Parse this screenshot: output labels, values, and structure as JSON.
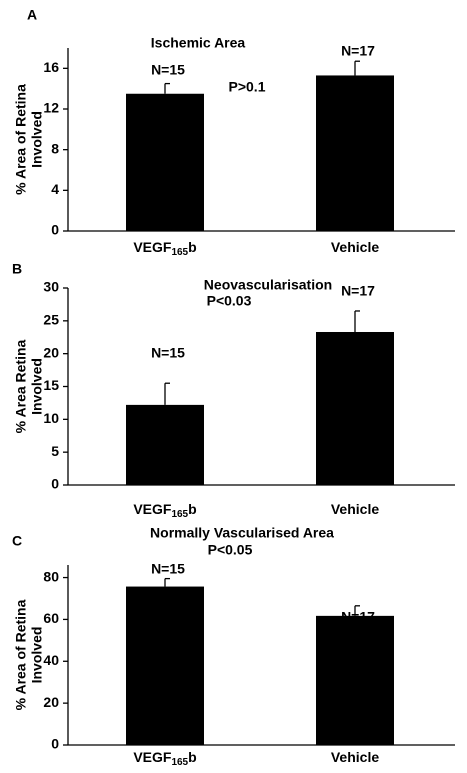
{
  "chart_data": [
    {
      "type": "bar",
      "panel": "A",
      "title": "Ischemic Area",
      "annotation": "P>0.1",
      "ylabel": [
        "% Area of Retina",
        "Involved"
      ],
      "categories": [
        "VEGF165b",
        "Vehicle"
      ],
      "n_labels": [
        "N=15",
        "N=17"
      ],
      "values": [
        13.5,
        15.3
      ],
      "errors": [
        1.0,
        1.4
      ],
      "color": "#000000",
      "ylim": [
        0,
        18
      ],
      "yticks": [
        0,
        4,
        8,
        12,
        16
      ]
    },
    {
      "type": "bar",
      "panel": "B",
      "title": "Neovascularisation",
      "annotation": "P<0.03",
      "ylabel": [
        "% Area Retina",
        "Involved"
      ],
      "categories": [
        "VEGF165b",
        "Vehicle"
      ],
      "n_labels": [
        "N=15",
        "N=17"
      ],
      "values": [
        12.2,
        23.3
      ],
      "errors": [
        3.3,
        3.2
      ],
      "color": "#000000",
      "ylim": [
        0,
        30
      ],
      "yticks": [
        0,
        5,
        10,
        15,
        20,
        25,
        30
      ]
    },
    {
      "type": "bar",
      "panel": "C",
      "title": "Normally Vascularised Area",
      "annotation": "P<0.05",
      "ylabel": [
        "% Area of Retina",
        "Involved"
      ],
      "categories": [
        "VEGF165b",
        "Vehicle"
      ],
      "n_labels": [
        "N=15",
        "N=17"
      ],
      "values": [
        75.7,
        61.7
      ],
      "errors": [
        3.8,
        4.8
      ],
      "color": "#000000",
      "ylim": [
        0,
        86
      ],
      "yticks": [
        0,
        20,
        40,
        60,
        80
      ]
    }
  ]
}
